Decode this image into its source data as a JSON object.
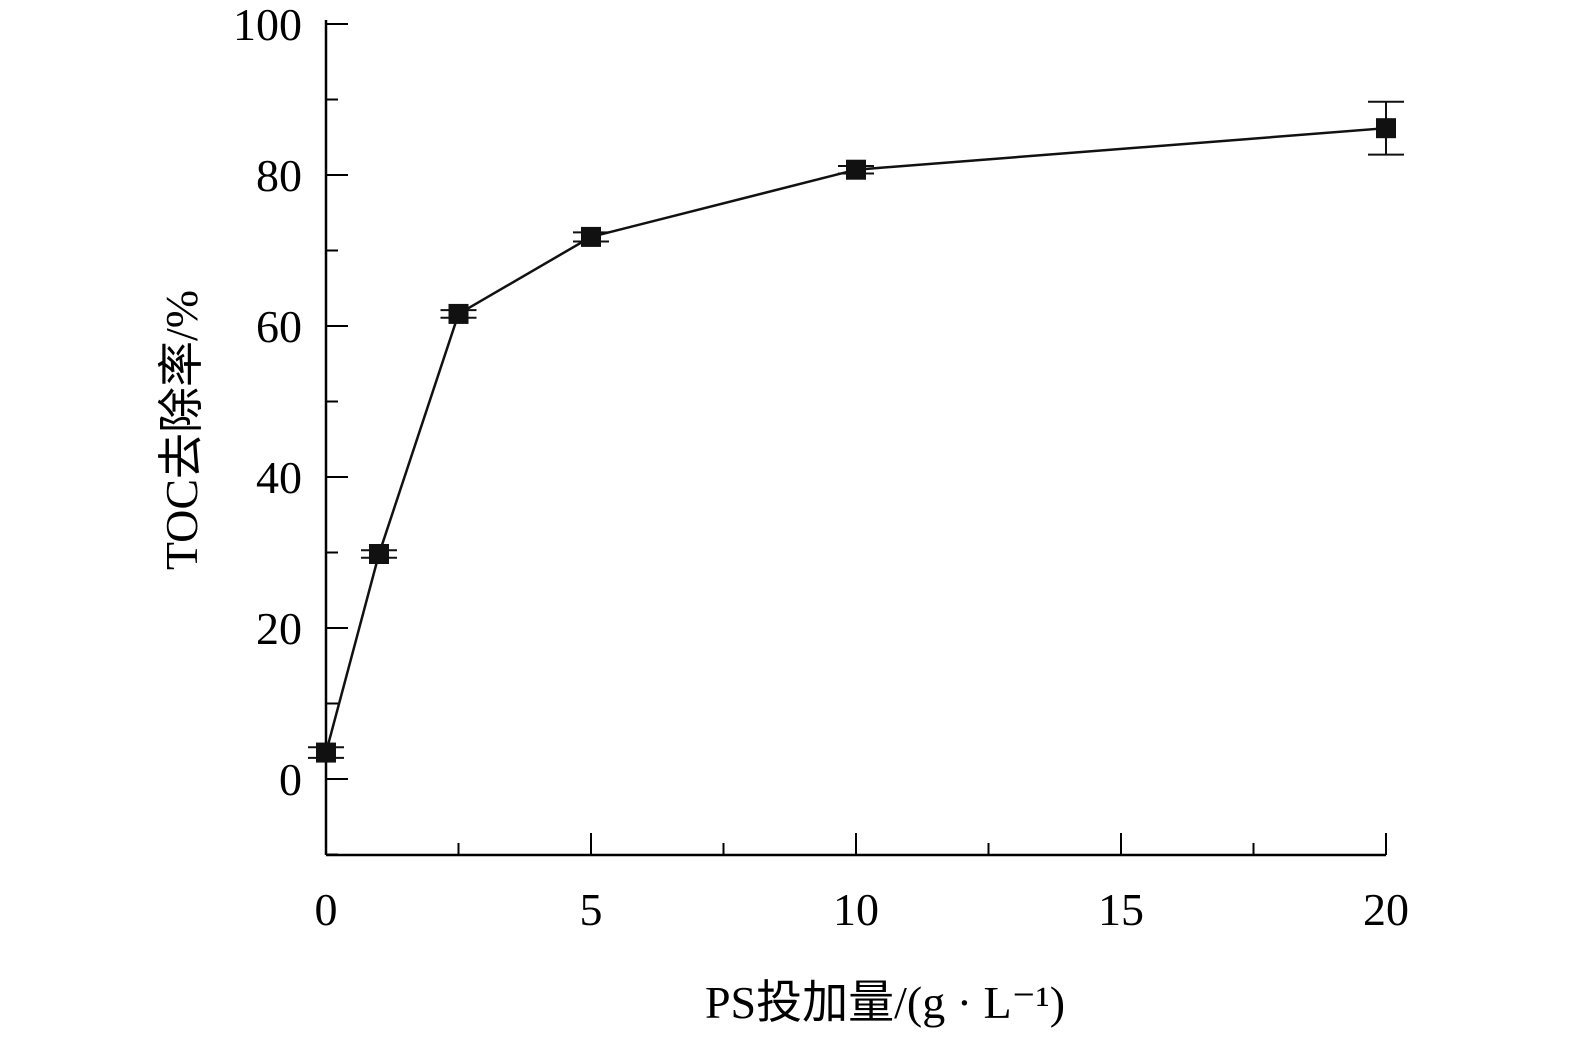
{
  "chart_data": {
    "type": "line",
    "xlabel": "PS投加量/(g · L⁻¹)",
    "ylabel": "TOC去除率/%",
    "xlim": [
      0,
      20
    ],
    "ylim": [
      -10,
      100
    ],
    "x_ticks": [
      "0",
      "5",
      "10",
      "15",
      "20"
    ],
    "y_ticks": [
      "0",
      "20",
      "40",
      "60",
      "80",
      "100"
    ],
    "series": [
      {
        "marker": "square",
        "color": "#111111",
        "points": [
          {
            "x": 0,
            "y": 3.5,
            "err": 0.7
          },
          {
            "x": 1,
            "y": 29.8,
            "err": 0.5
          },
          {
            "x": 2.5,
            "y": 61.6,
            "err": 0.5
          },
          {
            "x": 5,
            "y": 71.8,
            "err": 0.6
          },
          {
            "x": 10,
            "y": 80.7,
            "err": 0.5
          },
          {
            "x": 20,
            "y": 86.2,
            "err": 3.5
          }
        ]
      }
    ]
  }
}
